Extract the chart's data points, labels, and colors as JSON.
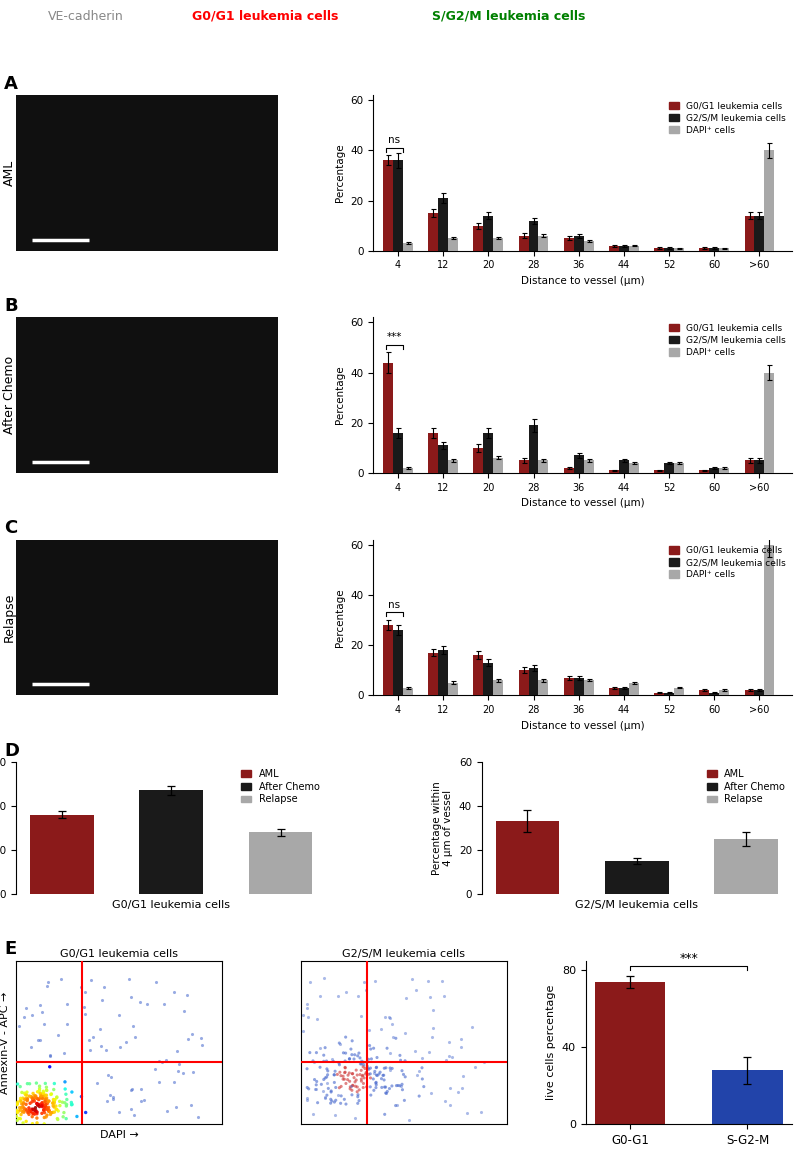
{
  "color_red": "#8B1A1A",
  "color_black": "#1a1a1a",
  "color_gray": "#A8A8A8",
  "color_blue": "#2244aa",
  "x_labels": [
    "4",
    "12",
    "20",
    "28",
    "36",
    "44",
    "52",
    "60",
    ">60"
  ],
  "aml_g0g1": [
    36,
    15,
    10,
    6,
    5,
    2,
    1,
    1,
    14
  ],
  "aml_g2sm": [
    36,
    21,
    14,
    12,
    6,
    2,
    1,
    1,
    14
  ],
  "aml_dapi": [
    3,
    5,
    5,
    6,
    4,
    2,
    1,
    1,
    40
  ],
  "aml_g0g1_err": [
    2.0,
    1.5,
    1.2,
    1.0,
    0.8,
    0.4,
    0.3,
    0.3,
    1.5
  ],
  "aml_g2sm_err": [
    3.0,
    2.0,
    1.5,
    1.2,
    0.8,
    0.4,
    0.3,
    0.3,
    1.5
  ],
  "aml_dapi_err": [
    0.5,
    0.5,
    0.5,
    0.6,
    0.4,
    0.3,
    0.2,
    0.2,
    3.0
  ],
  "aml_sig": "ns",
  "chemo_g0g1": [
    44,
    16,
    10,
    5,
    2,
    1,
    1,
    1,
    5
  ],
  "chemo_g2sm": [
    16,
    11,
    16,
    19,
    7,
    5,
    4,
    2,
    5
  ],
  "chemo_dapi": [
    2,
    5,
    6,
    5,
    5,
    4,
    4,
    2,
    40
  ],
  "chemo_g0g1_err": [
    4.0,
    2.0,
    1.5,
    1.0,
    0.5,
    0.3,
    0.3,
    0.3,
    1.0
  ],
  "chemo_g2sm_err": [
    2.0,
    1.5,
    2.0,
    2.5,
    1.0,
    0.7,
    0.5,
    0.3,
    1.0
  ],
  "chemo_dapi_err": [
    0.3,
    0.5,
    0.6,
    0.5,
    0.5,
    0.4,
    0.4,
    0.3,
    3.0
  ],
  "chemo_sig": "***",
  "relapse_g0g1": [
    28,
    17,
    16,
    10,
    7,
    3,
    1,
    2,
    2
  ],
  "relapse_g2sm": [
    26,
    18,
    13,
    11,
    7,
    3,
    1,
    1,
    2
  ],
  "relapse_dapi": [
    3,
    5,
    6,
    6,
    6,
    5,
    3,
    2,
    60
  ],
  "relapse_g0g1_err": [
    2.0,
    1.5,
    1.5,
    1.2,
    0.8,
    0.4,
    0.3,
    0.3,
    0.5
  ],
  "relapse_g2sm_err": [
    2.0,
    1.5,
    1.5,
    1.2,
    0.8,
    0.4,
    0.3,
    0.3,
    0.5
  ],
  "relapse_dapi_err": [
    0.4,
    0.5,
    0.6,
    0.6,
    0.5,
    0.4,
    0.3,
    0.3,
    5.0
  ],
  "relapse_sig": "ns",
  "d_g0g1_vals": [
    36,
    47,
    28
  ],
  "d_g0g1_errs": [
    1.5,
    2.0,
    1.5
  ],
  "d_g2sm_vals": [
    33,
    15,
    25
  ],
  "d_g2sm_errs": [
    5.0,
    1.5,
    3.0
  ],
  "d_colors": [
    "#8B1A1A",
    "#1a1a1a",
    "#A8A8A8"
  ],
  "d_legend": [
    "AML",
    "After Chemo",
    "Relapse"
  ],
  "e_bar_vals": [
    74,
    28
  ],
  "e_bar_errs": [
    3.0,
    7.0
  ],
  "e_bar_colors": [
    "#8B1A1A",
    "#2244aa"
  ],
  "e_bar_labels": [
    "G0-G1",
    "S-G2-M"
  ],
  "e_ylabel": "live cells percentage"
}
